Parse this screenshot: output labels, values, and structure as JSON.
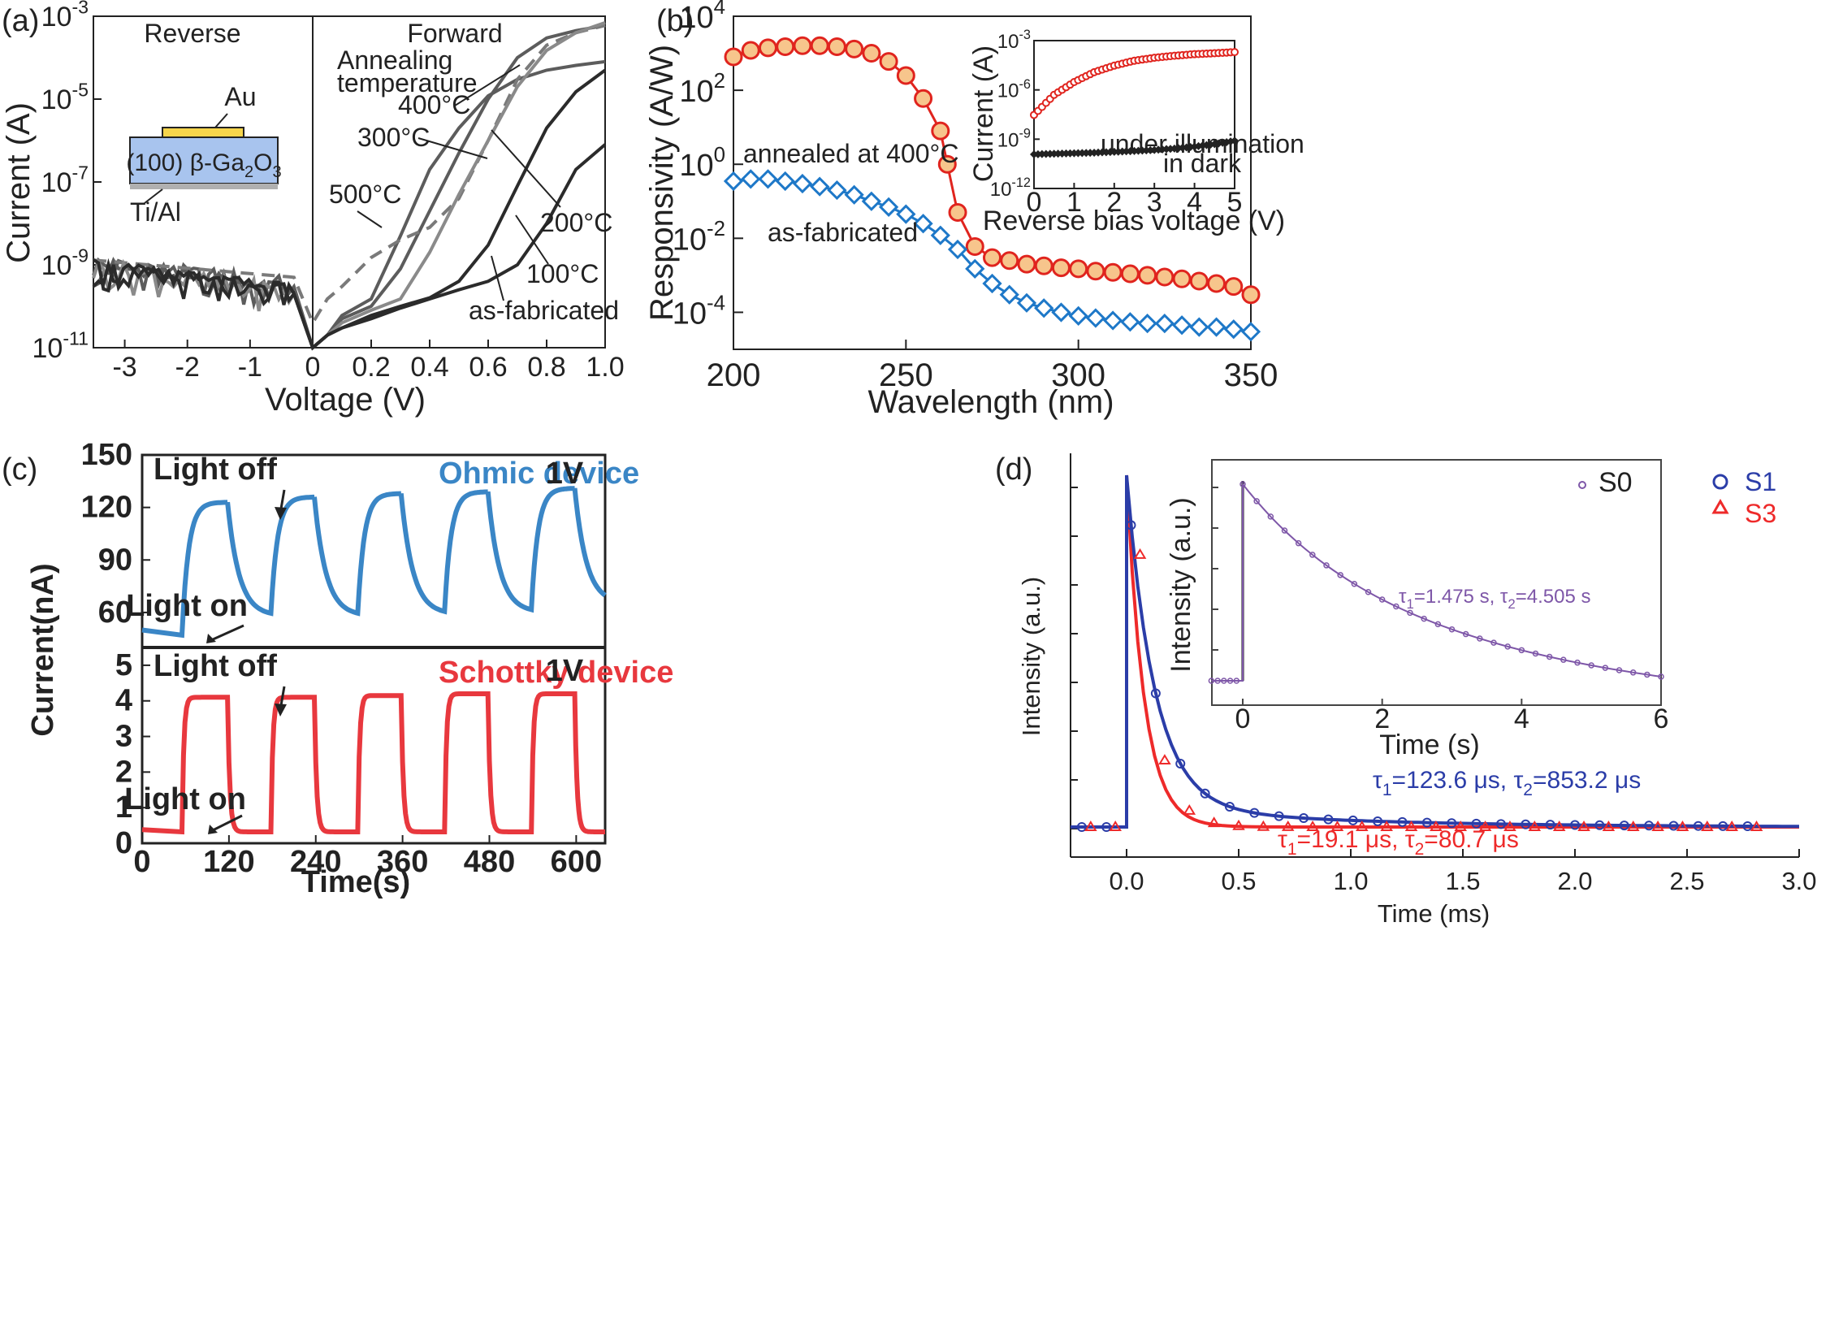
{
  "colors": {
    "grey_dark": "#2b2b2b",
    "grey_mid": "#5c5c5c",
    "grey_light": "#8a8a8a",
    "red": "#e0241e",
    "red_fill": "#f7c58c",
    "blue_b": "#1e78c8",
    "blue_c": "#3a86c6",
    "red_c": "#e8383e",
    "blue_d": "#2b3da8",
    "red_d": "#ee2a2a",
    "purple": "#7e57a8",
    "substrate": "#a8c4ee",
    "electrode": "#f6d54c",
    "ohmic": "#b0b0b0"
  },
  "chart_data": [
    {
      "id": "a",
      "panel_label": "(a)",
      "type": "line",
      "xlabel": "Voltage (V)",
      "ylabel": "Current (A)",
      "y_scale": "log",
      "ylim": [
        1e-11,
        0.001
      ],
      "region_labels": [
        "Reverse",
        "Forward"
      ],
      "reverse_ticks": [
        "-3",
        "-2",
        "-1",
        "0"
      ],
      "forward_ticks": [
        "0.2",
        "0.4",
        "0.6",
        "0.8",
        "1.0"
      ],
      "y_ticks": [
        {
          "base": "10",
          "exp": "-3"
        },
        {
          "base": "10",
          "exp": "-5"
        },
        {
          "base": "10",
          "exp": "-7"
        },
        {
          "base": "10",
          "exp": "-9"
        },
        {
          "base": "10",
          "exp": "-11"
        }
      ],
      "legend_title": [
        "Annealing",
        "temperature"
      ],
      "series": [
        {
          "name": "400°C",
          "color": "#5c5c5c",
          "dash": false,
          "x": [
            -3.5,
            -2,
            -1,
            -0.3,
            0,
            0.05,
            0.1,
            0.2,
            0.3,
            0.4,
            0.5,
            0.6,
            0.7,
            0.8,
            0.9,
            1.0
          ],
          "y": [
            1e-09,
            8e-10,
            6e-10,
            3e-10,
            1e-11,
            2e-11,
            6e-11,
            1.5e-10,
            5e-09,
            2e-07,
            2e-06,
            1.2e-05,
            3e-05,
            5e-05,
            6.5e-05,
            8e-05
          ]
        },
        {
          "name": "300°C",
          "color": "#5c5c5c",
          "dash": false,
          "x": [
            -3.5,
            -2,
            -1,
            -0.3,
            0,
            0.05,
            0.1,
            0.2,
            0.3,
            0.4,
            0.5,
            0.6,
            0.7,
            0.8,
            0.9,
            1.0
          ],
          "y": [
            9e-10,
            7e-10,
            5e-10,
            2.5e-10,
            1e-11,
            2e-11,
            5e-11,
            1e-10,
            8e-10,
            2e-08,
            5e-07,
            1e-05,
            0.0001,
            0.0003,
            0.00045,
            0.0006
          ]
        },
        {
          "name": "500°C",
          "color": "#7a7a7a",
          "dash": true,
          "x": [
            -3.5,
            -2,
            -1,
            -0.3,
            0,
            0.05,
            0.1,
            0.2,
            0.3,
            0.4,
            0.5,
            0.6,
            0.7,
            0.8,
            0.9,
            1.0
          ],
          "y": [
            1.3e-09,
            1.1e-09,
            9e-10,
            5e-10,
            4e-11,
            1.5e-10,
            3e-10,
            1.5e-09,
            4e-09,
            8e-09,
            4e-08,
            1e-06,
            3e-05,
            0.0002,
            0.0004,
            0.0006
          ]
        },
        {
          "name": "200°C",
          "color": "#8a8a8a",
          "dash": false,
          "x": [
            -3.5,
            -2,
            -1,
            -0.3,
            0,
            0.05,
            0.1,
            0.2,
            0.3,
            0.4,
            0.5,
            0.6,
            0.7,
            0.8,
            0.9,
            1.0
          ],
          "y": [
            8e-10,
            6e-10,
            4e-10,
            2e-10,
            1e-11,
            2e-11,
            4e-11,
            8e-11,
            1.5e-10,
            2e-09,
            5e-08,
            1e-06,
            2e-05,
            0.00015,
            0.0004,
            0.0007
          ]
        },
        {
          "name": "100°C",
          "color": "#2b2b2b",
          "dash": false,
          "x": [
            -3.5,
            -2,
            -1,
            -0.3,
            0,
            0.05,
            0.1,
            0.2,
            0.3,
            0.4,
            0.5,
            0.6,
            0.7,
            0.8,
            0.9,
            1.0
          ],
          "y": [
            8e-10,
            6e-10,
            4e-10,
            2e-10,
            1e-11,
            2e-11,
            3e-11,
            6e-11,
            1e-10,
            1.6e-10,
            4e-10,
            3e-09,
            8e-08,
            2e-06,
            1.5e-05,
            5e-05
          ]
        },
        {
          "name": "as-fabricated",
          "color": "#2b2b2b",
          "dash": false,
          "x": [
            -3.5,
            -2,
            -1,
            -0.3,
            0,
            0.05,
            0.1,
            0.2,
            0.3,
            0.4,
            0.5,
            0.6,
            0.7,
            0.8,
            0.9,
            1.0
          ],
          "y": [
            8e-10,
            6e-10,
            4e-10,
            2e-10,
            1e-11,
            2e-11,
            3e-11,
            5e-11,
            9e-11,
            1.5e-10,
            2.5e-10,
            4e-10,
            1e-09,
            1e-08,
            2e-07,
            8e-07
          ]
        }
      ],
      "device": {
        "metal": "Au",
        "substrate_prefix": "(100) β-Ga",
        "substrate_sub": "2",
        "substrate_mid": "O",
        "substrate_sub2": "3",
        "contact": "Ti/Al"
      }
    },
    {
      "id": "b",
      "panel_label": "(b)",
      "type": "line",
      "xlabel": "Wavelength (nm)",
      "ylabel": "Responsivity (A/W)",
      "y_scale": "log",
      "xlim": [
        200,
        350
      ],
      "ylim": [
        1e-05,
        10000.0
      ],
      "x_ticks": [
        "200",
        "250",
        "300",
        "350"
      ],
      "y_ticks": [
        {
          "base": "10",
          "exp": "4"
        },
        {
          "base": "10",
          "exp": "2"
        },
        {
          "base": "10",
          "exp": "0"
        },
        {
          "base": "10",
          "exp": "-2"
        },
        {
          "base": "10",
          "exp": "-4"
        }
      ],
      "series": [
        {
          "name": "annealed at 400°C",
          "marker": "circle",
          "color": "#e0241e",
          "x": [
            200,
            205,
            210,
            215,
            220,
            225,
            230,
            235,
            240,
            245,
            250,
            255,
            260,
            262,
            265,
            270,
            275,
            280,
            285,
            290,
            295,
            300,
            305,
            310,
            315,
            320,
            325,
            330,
            335,
            340,
            345,
            350
          ],
          "y": [
            800,
            1200,
            1400,
            1500,
            1600,
            1600,
            1500,
            1300,
            1000,
            600,
            250,
            60,
            8,
            1,
            0.05,
            0.006,
            0.003,
            0.0025,
            0.002,
            0.0018,
            0.0016,
            0.0015,
            0.0013,
            0.0012,
            0.0011,
            0.001,
            0.0009,
            0.0008,
            0.0007,
            0.0006,
            0.0005,
            0.0003
          ]
        },
        {
          "name": "as-fabricated",
          "marker": "diamond",
          "color": "#1e78c8",
          "x": [
            200,
            205,
            210,
            215,
            220,
            225,
            230,
            235,
            240,
            245,
            250,
            255,
            260,
            265,
            270,
            275,
            280,
            285,
            290,
            295,
            300,
            305,
            310,
            315,
            320,
            325,
            330,
            335,
            340,
            345,
            350
          ],
          "y": [
            0.35,
            0.4,
            0.4,
            0.35,
            0.3,
            0.25,
            0.2,
            0.15,
            0.1,
            0.07,
            0.045,
            0.025,
            0.012,
            0.005,
            0.0015,
            0.0006,
            0.0003,
            0.00018,
            0.00013,
            0.0001,
            8e-05,
            7e-05,
            6e-05,
            5.5e-05,
            5e-05,
            5e-05,
            4.5e-05,
            4e-05,
            4e-05,
            3.5e-05,
            3e-05
          ]
        }
      ],
      "inset": {
        "xlabel": "Reverse bias voltage (V)",
        "ylabel": "Current (A)",
        "xlim": [
          0,
          5
        ],
        "ylim": [
          1e-12,
          0.001
        ],
        "x_ticks": [
          "0",
          "1",
          "2",
          "3",
          "4",
          "5"
        ],
        "y_ticks": [
          {
            "base": "10",
            "exp": "-3"
          },
          {
            "base": "10",
            "exp": "-6"
          },
          {
            "base": "10",
            "exp": "-9"
          },
          {
            "base": "10",
            "exp": "-12"
          }
        ],
        "series": [
          {
            "name": "under illumination",
            "color": "#e0241e",
            "x": [
              0,
              0.5,
              1,
              1.5,
              2,
              2.5,
              3,
              3.5,
              4,
              4.5,
              5
            ],
            "y": [
              3e-08,
              5e-07,
              3e-06,
              1.2e-05,
              3e-05,
              6e-05,
              9e-05,
              0.00012,
              0.00015,
              0.00017,
              0.0002
            ]
          },
          {
            "name": "in dark",
            "color": "#222222",
            "x": [
              0,
              0.5,
              1,
              1.5,
              2,
              2.5,
              3,
              3.5,
              4,
              4.5,
              5
            ],
            "y": [
              1.2e-10,
              1.3e-10,
              1.4e-10,
              1.5e-10,
              1.7e-10,
              1.9e-10,
              2.2e-10,
              2.7e-10,
              3.5e-10,
              5e-10,
              8e-10
            ]
          }
        ]
      }
    },
    {
      "id": "c",
      "panel_label": "(c)",
      "type": "line",
      "xlabel": "Time(s)",
      "ylabel": "Current(nA)",
      "x_ticks": [
        "0",
        "120",
        "240",
        "360",
        "480",
        "600"
      ],
      "xlim": [
        0,
        640
      ],
      "top": {
        "title": "Ohmic device",
        "bias": "1V",
        "ylim": [
          40,
          150
        ],
        "y_ticks": [
          "150",
          "120",
          "90",
          "60"
        ],
        "color": "#3a86c6",
        "baseline": 50,
        "cycles": [
          {
            "on": 55,
            "off": 118,
            "peak": 123,
            "low": 58
          },
          {
            "on": 178,
            "off": 238,
            "peak": 126,
            "low": 58
          },
          {
            "on": 298,
            "off": 358,
            "peak": 128,
            "low": 59
          },
          {
            "on": 418,
            "off": 478,
            "peak": 129,
            "low": 60
          },
          {
            "on": 538,
            "off": 598,
            "peak": 131,
            "low": 65
          }
        ]
      },
      "bottom": {
        "title": "Schottky device",
        "bias": "1V",
        "ylim": [
          0,
          5.5
        ],
        "y_ticks": [
          "5",
          "4",
          "3",
          "2",
          "1",
          "0"
        ],
        "color": "#e8383e",
        "baseline": 0.32,
        "cycles": [
          {
            "on": 55,
            "off": 118,
            "peak": 4.1
          },
          {
            "on": 178,
            "off": 238,
            "peak": 4.1
          },
          {
            "on": 298,
            "off": 358,
            "peak": 4.15
          },
          {
            "on": 418,
            "off": 478,
            "peak": 4.2
          },
          {
            "on": 538,
            "off": 598,
            "peak": 4.2
          }
        ]
      },
      "annotations": [
        "Light off",
        "Light on"
      ]
    },
    {
      "id": "d",
      "panel_label": "(d)",
      "type": "line",
      "xlabel": "Time (ms)",
      "ylabel": "Intensity (a.u.)",
      "xlim": [
        -0.25,
        3.0
      ],
      "x_ticks": [
        "0.0",
        "0.5",
        "1.0",
        "1.5",
        "2.0",
        "2.5",
        "3.0"
      ],
      "series": [
        {
          "name": "S1",
          "color": "#2b3da8",
          "marker": "circle",
          "tau1": "123.6",
          "tau2": "853.2"
        },
        {
          "name": "S3",
          "color": "#ee2a2a",
          "marker": "triangle",
          "tau1": "19.1",
          "tau2": "80.7"
        }
      ],
      "inset": {
        "xlabel": "Time (s)",
        "ylabel": "Intensity (a.u.)",
        "x_ticks": [
          "0",
          "2",
          "4",
          "6"
        ],
        "series": [
          {
            "name": "S0",
            "color": "#7e57a8",
            "tau1": "1.475",
            "tau2": "4.505"
          }
        ]
      }
    }
  ],
  "panel_a_text": {
    "reverse": "Reverse",
    "forward": "Forward",
    "legend1": "Annealing",
    "legend2": "temperature",
    "t400": "400°C",
    "t300": "300°C",
    "t500": "500°C",
    "t200": "200°C",
    "t100": "100°C",
    "tas": "as-fabricated",
    "metal": "Au",
    "contact": "Ti/Al",
    "sub_pre": "(100) β-Ga",
    "sub_2": "2",
    "sub_o": "O",
    "sub_3": "3"
  },
  "panel_b_text": {
    "annealed": "annealed at 400°C",
    "asfab": "as-fabricated",
    "illum": "under illumination",
    "dark": "in dark"
  },
  "panel_c_text": {
    "ohmic": "Ohmic device",
    "schottky": "Schottky device",
    "bias": "1V",
    "off": "Light off",
    "on": "Light on"
  },
  "panel_d_text": {
    "s1": "S1",
    "s3": "S3",
    "s0": "S0",
    "tau_symbol": "τ",
    "s1_t1": "=123.6 μs, ",
    "s1_t2": "=853.2 μs",
    "s3_t1": "=19.1 μs, ",
    "s3_t2": "=80.7 μs",
    "s0_t1": "=1.475 s, ",
    "s0_t2": "=4.505 s"
  }
}
